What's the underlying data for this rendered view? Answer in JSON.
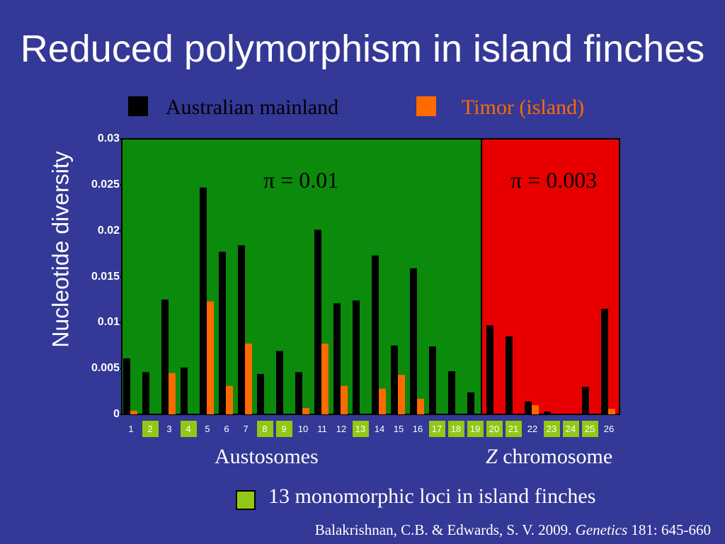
{
  "slide": {
    "title": "Reduced polymorphism in island finches",
    "note": "13 monomorphic loci in island finches",
    "citation": {
      "pre": "Balakrishnan, C.B. & Edwards, S. V. 2009. ",
      "journal": "Genetics",
      "post": " 181: 645-660"
    }
  },
  "colors": {
    "background": "#343896",
    "autosome_region": "#0c8a0c",
    "z_region": "#e80000",
    "mainland": "#000000",
    "island": "#ff6a00",
    "monomorphic_highlight": "#92c815"
  },
  "chart_data": {
    "type": "bar",
    "title": "",
    "ylabel": "Nucleotide diversity",
    "xlabel": "",
    "ylim": [
      0,
      0.03
    ],
    "yticks": [
      "0",
      "0.005",
      "0.01",
      "0.015",
      "0.02",
      "0.025",
      "0.03"
    ],
    "yticks_values": [
      0,
      0.005,
      0.01,
      0.015,
      0.02,
      0.025,
      0.03
    ],
    "categories": [
      "1",
      "2",
      "3",
      "4",
      "5",
      "6",
      "7",
      "8",
      "9",
      "10",
      "11",
      "12",
      "13",
      "14",
      "15",
      "16",
      "17",
      "18",
      "19",
      "20",
      "21",
      "22",
      "23",
      "24",
      "25",
      "26"
    ],
    "highlighted_categories": [
      "2",
      "4",
      "8",
      "9",
      "13",
      "17",
      "18",
      "19",
      "20",
      "21",
      "23",
      "24",
      "25"
    ],
    "series": [
      {
        "name": "Australian mainland",
        "values": [
          0.0061,
          0.0046,
          0.0125,
          0.0051,
          0.0247,
          0.0177,
          0.0184,
          0.0044,
          0.0069,
          0.0046,
          0.0201,
          0.0121,
          0.0124,
          0.0173,
          0.0075,
          0.0159,
          0.0074,
          0.0047,
          0.0024,
          0.0097,
          0.0085,
          0.0014,
          0.0003,
          0.0,
          0.003,
          0.0115
        ]
      },
      {
        "name": "Timor (island)",
        "values": [
          0.0004,
          0.0,
          0.0045,
          0.0,
          0.0123,
          0.0031,
          0.0077,
          0.0,
          0.0,
          0.0007,
          0.0077,
          0.0031,
          0.0,
          0.0028,
          0.0043,
          0.0017,
          0.0,
          0.0,
          0.0,
          0.0,
          0.0,
          0.001,
          0.0,
          0.0,
          0.0,
          0.0006
        ]
      }
    ],
    "regions": [
      {
        "name": "Austosomes",
        "from": "1",
        "to": "19",
        "label": "π = 0.01",
        "color": "#0c8a0c"
      },
      {
        "name": "Z chromosome",
        "from": "20",
        "to": "26",
        "label": "π = 0.003",
        "color": "#e80000"
      }
    ],
    "region_labels": {
      "autosomes": "Austosomes",
      "z_prefix": "Z",
      "z_suffix": " chromosome"
    },
    "legend_position": "top"
  }
}
